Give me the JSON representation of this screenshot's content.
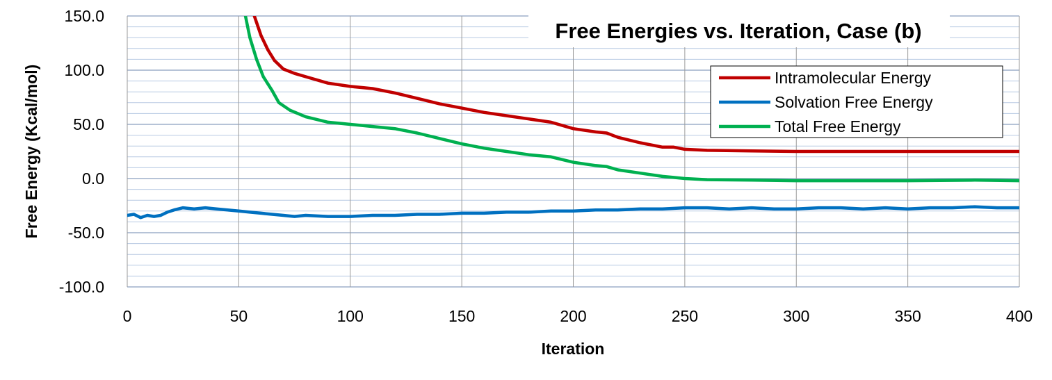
{
  "chart_data": {
    "type": "line",
    "title": "Free Energies vs. Iteration, Case (b)",
    "xlabel": "Iteration",
    "ylabel": "Free Energy (Kcal/mol)",
    "xlim": [
      0,
      400
    ],
    "ylim": [
      -100,
      150
    ],
    "xticks": [
      0,
      50,
      100,
      150,
      200,
      250,
      300,
      350,
      400
    ],
    "xtick_labels": [
      "0",
      "50",
      "100",
      "150",
      "200",
      "250",
      "300",
      "350",
      "400"
    ],
    "yticks": [
      150,
      100,
      50,
      0,
      -50,
      -100
    ],
    "ytick_labels": [
      "150.0",
      "100.0",
      "50.0",
      "0.0",
      "-50.0",
      "-100.0"
    ],
    "minor_y_step": 10,
    "grid": true,
    "legend_position": "top-right",
    "series": [
      {
        "name": "Intramolecular Energy",
        "color": "#C00000",
        "x": [
          57,
          60,
          63,
          66,
          70,
          75,
          80,
          90,
          100,
          110,
          120,
          130,
          140,
          150,
          160,
          170,
          180,
          190,
          200,
          210,
          215,
          220,
          230,
          240,
          245,
          250,
          260,
          280,
          300,
          330,
          350,
          400
        ],
        "y": [
          150,
          132,
          119,
          109,
          101,
          97,
          94,
          88,
          85,
          83,
          79,
          74,
          69,
          65,
          61,
          58,
          55,
          52,
          46,
          43,
          42,
          38,
          33,
          29,
          29,
          27,
          26,
          25.5,
          25,
          25,
          25,
          25
        ]
      },
      {
        "name": "Solvation Free Energy",
        "color": "#0070C0",
        "x": [
          0,
          3,
          6,
          9,
          12,
          15,
          18,
          21,
          25,
          30,
          35,
          40,
          45,
          50,
          55,
          60,
          65,
          70,
          75,
          80,
          90,
          100,
          110,
          120,
          130,
          140,
          150,
          160,
          170,
          180,
          190,
          200,
          210,
          220,
          230,
          240,
          250,
          260,
          270,
          280,
          290,
          300,
          310,
          320,
          330,
          340,
          350,
          360,
          370,
          380,
          390,
          400
        ],
        "y": [
          -34,
          -33,
          -36,
          -34,
          -35,
          -34,
          -31,
          -29,
          -27,
          -28,
          -27,
          -28,
          -29,
          -30,
          -31,
          -32,
          -33,
          -34,
          -35,
          -34,
          -35,
          -35,
          -34,
          -34,
          -33,
          -33,
          -32,
          -32,
          -31,
          -31,
          -30,
          -30,
          -29,
          -29,
          -28,
          -28,
          -27,
          -27,
          -28,
          -27,
          -28,
          -28,
          -27,
          -27,
          -28,
          -27,
          -28,
          -27,
          -27,
          -26,
          -27,
          -27
        ]
      },
      {
        "name": "Total Free Energy",
        "color": "#00B050",
        "x": [
          53,
          55,
          58,
          61,
          65,
          68,
          73,
          80,
          90,
          100,
          110,
          120,
          130,
          140,
          150,
          160,
          170,
          180,
          190,
          200,
          210,
          215,
          220,
          230,
          240,
          245,
          250,
          260,
          280,
          300,
          330,
          350,
          380,
          400
        ],
        "y": [
          150,
          130,
          110,
          94,
          81,
          70,
          63,
          57,
          52,
          50,
          48,
          46,
          42,
          37,
          32,
          28,
          25,
          22,
          20,
          15,
          12,
          11,
          8,
          5,
          2,
          1,
          0,
          -1,
          -1.5,
          -2,
          -2,
          -2,
          -1.5,
          -2
        ]
      }
    ]
  }
}
